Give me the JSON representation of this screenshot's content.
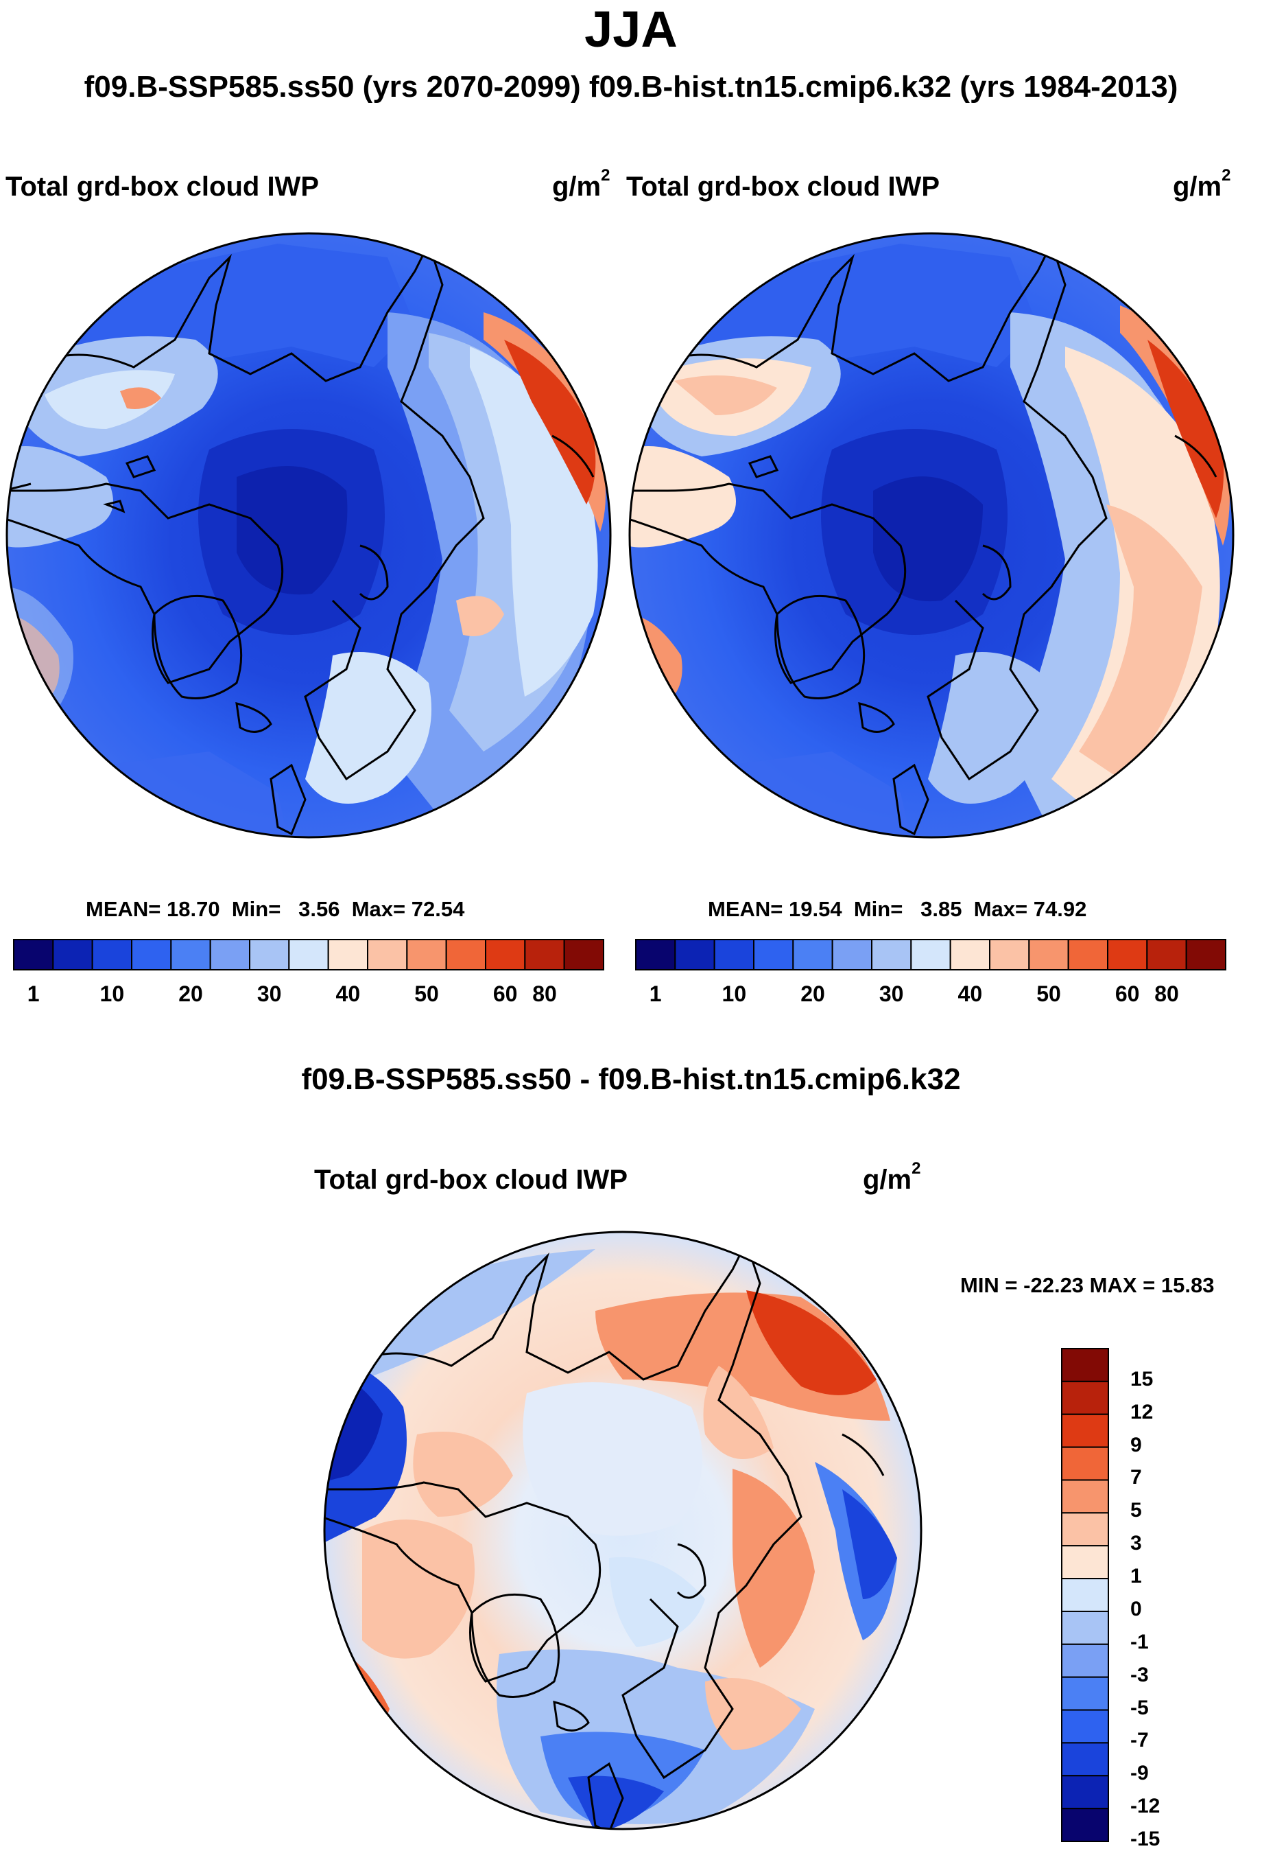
{
  "title": "JJA",
  "subtitle": "f09.B-SSP585.ss50 (yrs 2070-2099)  f09.B-hist.tn15.cmip6.k32 (yrs 1984-2013)",
  "panels": [
    {
      "variable": "Total grd-box cloud IWP",
      "units_base": "g/m",
      "units_exp": "2",
      "stats": {
        "mean_label": "MEAN=",
        "mean": "18.70",
        "min_label": "Min=",
        "min": "3.56",
        "max_label": "Max=",
        "max": "72.54"
      }
    },
    {
      "variable": "Total grd-box cloud IWP",
      "units_base": "g/m",
      "units_exp": "2",
      "stats": {
        "mean_label": "MEAN=",
        "mean": "19.54",
        "min_label": "Min=",
        "min": "3.85",
        "max_label": "Max=",
        "max": "74.92"
      }
    }
  ],
  "abs_colorbar": {
    "colors": [
      "#08046e",
      "#0c23b4",
      "#1a44dc",
      "#2e62f0",
      "#4b80f4",
      "#7aa0f4",
      "#a8c4f5",
      "#d4e6fb",
      "#fde5d4",
      "#fbc2a6",
      "#f7956d",
      "#f06638",
      "#de3a14",
      "#b8220c",
      "#820a05"
    ],
    "ticks": [
      "1",
      "10",
      "20",
      "30",
      "40",
      "50",
      "60",
      "80"
    ]
  },
  "diff": {
    "title": "f09.B-SSP585.ss50 - f09.B-hist.tn15.cmip6.k32",
    "variable": "Total grd-box cloud IWP",
    "units_base": "g/m",
    "units_exp": "2",
    "minmax": "MIN = -22.23 MAX =  15.83",
    "colorbar": {
      "colors": [
        "#820a05",
        "#b8220c",
        "#de3a14",
        "#f06638",
        "#f7956d",
        "#fbc2a6",
        "#fde5d4",
        "#d4e6fb",
        "#a8c4f5",
        "#7aa0f4",
        "#4b80f4",
        "#2e62f0",
        "#1a44dc",
        "#0c23b4",
        "#08046e"
      ],
      "labels": [
        "15",
        "12",
        "9",
        "7",
        "5",
        "3",
        "1",
        "0",
        "-1",
        "-3",
        "-5",
        "-7",
        "-9",
        "-12",
        "-15"
      ]
    }
  },
  "chart_data": [
    {
      "type": "heatmap",
      "title": "Total grd-box cloud IWP",
      "units": "g/m2",
      "projection": "north polar stereographic",
      "case": "f09.B-SSP585.ss50 (yrs 2070-2099)",
      "mean": 18.7,
      "min": 3.56,
      "max": 72.54,
      "contour_levels": [
        1,
        5,
        10,
        15,
        20,
        25,
        30,
        35,
        40,
        45,
        50,
        55,
        60,
        70,
        80
      ]
    },
    {
      "type": "heatmap",
      "title": "Total grd-box cloud IWP",
      "units": "g/m2",
      "projection": "north polar stereographic",
      "case": "f09.B-hist.tn15.cmip6.k32 (yrs 1984-2013)",
      "mean": 19.54,
      "min": 3.85,
      "max": 74.92,
      "contour_levels": [
        1,
        5,
        10,
        15,
        20,
        25,
        30,
        35,
        40,
        45,
        50,
        55,
        60,
        70,
        80
      ]
    },
    {
      "type": "heatmap",
      "title": "Total grd-box cloud IWP",
      "units": "g/m2",
      "projection": "north polar stereographic",
      "case": "f09.B-SSP585.ss50 - f09.B-hist.tn15.cmip6.k32",
      "min": -22.23,
      "max": 15.83,
      "contour_levels": [
        -15,
        -12,
        -9,
        -7,
        -5,
        -3,
        -1,
        0,
        1,
        3,
        5,
        7,
        9,
        12,
        15
      ]
    }
  ]
}
